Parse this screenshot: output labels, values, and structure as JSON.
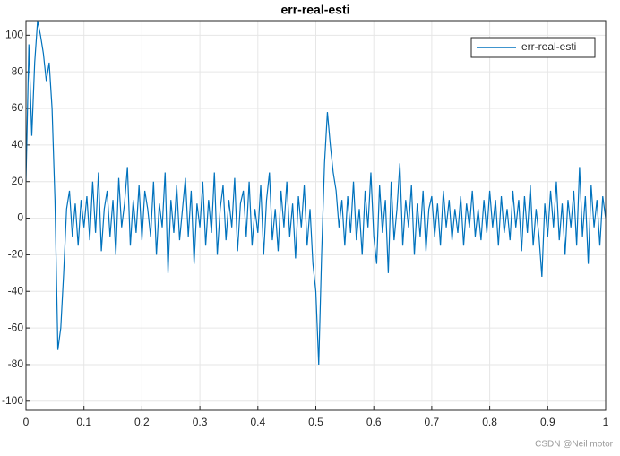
{
  "chart_data": {
    "type": "line",
    "title": "err-real-esti",
    "x": [
      0,
      0.005,
      0.01,
      0.015,
      0.02,
      0.025,
      0.03,
      0.035,
      0.04,
      0.045,
      0.05,
      0.055,
      0.06,
      0.065,
      0.07,
      0.075,
      0.08,
      0.085,
      0.09,
      0.095,
      0.1,
      0.105,
      0.11,
      0.115,
      0.12,
      0.125,
      0.13,
      0.135,
      0.14,
      0.145,
      0.15,
      0.155,
      0.16,
      0.165,
      0.17,
      0.175,
      0.18,
      0.185,
      0.19,
      0.195,
      0.2,
      0.205,
      0.21,
      0.215,
      0.22,
      0.225,
      0.23,
      0.235,
      0.24,
      0.245,
      0.25,
      0.255,
      0.26,
      0.265,
      0.27,
      0.275,
      0.28,
      0.285,
      0.29,
      0.295,
      0.3,
      0.305,
      0.31,
      0.315,
      0.32,
      0.325,
      0.33,
      0.335,
      0.34,
      0.345,
      0.35,
      0.355,
      0.36,
      0.365,
      0.37,
      0.375,
      0.38,
      0.385,
      0.39,
      0.395,
      0.4,
      0.405,
      0.41,
      0.415,
      0.42,
      0.425,
      0.43,
      0.435,
      0.44,
      0.445,
      0.45,
      0.455,
      0.46,
      0.465,
      0.47,
      0.475,
      0.48,
      0.485,
      0.49,
      0.495,
      0.5,
      0.505,
      0.51,
      0.515,
      0.52,
      0.525,
      0.53,
      0.535,
      0.54,
      0.545,
      0.55,
      0.555,
      0.56,
      0.565,
      0.57,
      0.575,
      0.58,
      0.585,
      0.59,
      0.595,
      0.6,
      0.605,
      0.61,
      0.615,
      0.62,
      0.625,
      0.63,
      0.635,
      0.64,
      0.645,
      0.65,
      0.655,
      0.66,
      0.665,
      0.67,
      0.675,
      0.68,
      0.685,
      0.69,
      0.695,
      0.7,
      0.705,
      0.71,
      0.715,
      0.72,
      0.725,
      0.73,
      0.735,
      0.74,
      0.745,
      0.75,
      0.755,
      0.76,
      0.765,
      0.77,
      0.775,
      0.78,
      0.785,
      0.79,
      0.795,
      0.8,
      0.805,
      0.81,
      0.815,
      0.82,
      0.825,
      0.83,
      0.835,
      0.84,
      0.845,
      0.85,
      0.855,
      0.86,
      0.865,
      0.87,
      0.875,
      0.88,
      0.885,
      0.89,
      0.895,
      0.9,
      0.905,
      0.91,
      0.915,
      0.92,
      0.925,
      0.93,
      0.935,
      0.94,
      0.945,
      0.95,
      0.955,
      0.96,
      0.965,
      0.97,
      0.975,
      0.98,
      0.985,
      0.99,
      0.995,
      1
    ],
    "series": [
      {
        "name": "err-real-esti",
        "color": "#0072bd",
        "values": [
          20,
          95,
          45,
          85,
          108,
          100,
          90,
          75,
          85,
          60,
          10,
          -72,
          -60,
          -30,
          5,
          15,
          -10,
          8,
          -15,
          10,
          -5,
          12,
          -12,
          20,
          -8,
          25,
          -18,
          5,
          15,
          -10,
          10,
          -20,
          22,
          -5,
          8,
          28,
          -15,
          10,
          -8,
          18,
          -12,
          15,
          5,
          -10,
          20,
          -20,
          8,
          -5,
          25,
          -30,
          10,
          -8,
          18,
          -12,
          5,
          22,
          -10,
          15,
          -25,
          8,
          -5,
          20,
          -15,
          10,
          -8,
          25,
          -20,
          5,
          18,
          -12,
          10,
          -5,
          22,
          -18,
          8,
          15,
          -10,
          20,
          -15,
          5,
          -8,
          18,
          -20,
          10,
          25,
          -12,
          5,
          -18,
          15,
          -5,
          20,
          -10,
          8,
          -22,
          12,
          -5,
          18,
          -15,
          5,
          -25,
          -40,
          -80,
          -20,
          30,
          58,
          40,
          25,
          15,
          -5,
          10,
          -15,
          12,
          -8,
          20,
          -12,
          5,
          -20,
          15,
          -5,
          25,
          -10,
          -25,
          18,
          -8,
          10,
          -30,
          20,
          -12,
          5,
          30,
          -15,
          10,
          -5,
          18,
          -20,
          8,
          -10,
          15,
          -18,
          5,
          12,
          -10,
          8,
          -15,
          15,
          -5,
          10,
          -12,
          5,
          -8,
          12,
          -15,
          8,
          -5,
          15,
          -10,
          5,
          -12,
          10,
          -8,
          15,
          -5,
          10,
          -15,
          12,
          -8,
          5,
          -12,
          15,
          -5,
          10,
          -18,
          12,
          -8,
          18,
          -15,
          5,
          -10,
          -32,
          8,
          -10,
          15,
          -5,
          20,
          -12,
          8,
          -20,
          10,
          -5,
          15,
          -15,
          28,
          -10,
          12,
          -25,
          18,
          -5,
          10,
          -15,
          12,
          0
        ]
      }
    ],
    "xlim": [
      0,
      1
    ],
    "xticks": [
      0,
      0.1,
      0.2,
      0.3,
      0.4,
      0.5,
      0.6,
      0.7,
      0.8,
      0.9,
      1
    ],
    "ylim": [
      -105,
      108
    ],
    "yticks": [
      -100,
      -80,
      -60,
      -40,
      -20,
      0,
      20,
      40,
      60,
      80,
      100
    ],
    "grid": true,
    "legend": "northeast",
    "watermark": "CSDN @Neil motor"
  }
}
